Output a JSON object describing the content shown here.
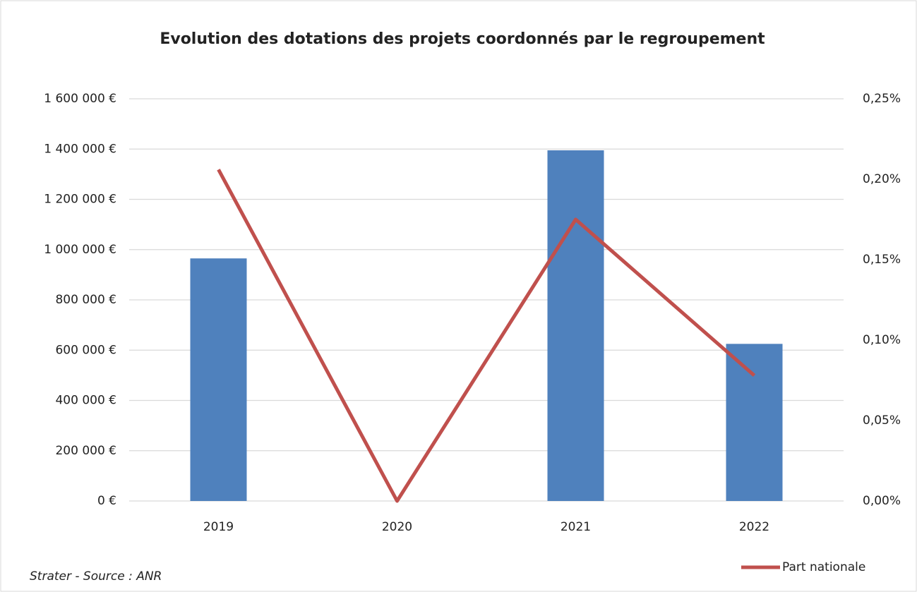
{
  "chart_data": {
    "type": "bar",
    "title": "Evolution des dotations des projets coordonnés par le regroupement",
    "footnote": "Strater - Source : ANR",
    "categories": [
      "2019",
      "2020",
      "2021",
      "2022"
    ],
    "series": [
      {
        "type": "bar",
        "color": "#4f81bd",
        "values": [
          965000,
          0,
          1395000,
          625000
        ]
      },
      {
        "type": "line",
        "name": "Part nationale",
        "axis": "y2",
        "color": "#c0504d",
        "values": [
          0.206,
          0,
          0.175,
          0.078
        ]
      }
    ],
    "ylim": [
      0,
      1600000
    ],
    "yticks": [
      {
        "value": 0,
        "label": "0 €"
      },
      {
        "value": 200000,
        "label": "200 000 €"
      },
      {
        "value": 400000,
        "label": "400 000 €"
      },
      {
        "value": 600000,
        "label": "600 000 €"
      },
      {
        "value": 800000,
        "label": "800 000 €"
      },
      {
        "value": 1000000,
        "label": "1 000 000 €"
      },
      {
        "value": 1200000,
        "label": "1 200 000 €"
      },
      {
        "value": 1400000,
        "label": "1 400 000 €"
      },
      {
        "value": 1600000,
        "label": "1 600 000 €"
      }
    ],
    "y2lim": [
      0,
      0.25
    ],
    "y2ticks": [
      {
        "value": 0,
        "label": "0,00%"
      },
      {
        "value": 0.05,
        "label": "0,05%"
      },
      {
        "value": 0.1,
        "label": "0,10%"
      },
      {
        "value": 0.15,
        "label": "0,15%"
      },
      {
        "value": 0.2,
        "label": "0,20%"
      },
      {
        "value": 0.25,
        "label": "0,25%"
      }
    ],
    "grid": true,
    "legend": "bottom-right"
  }
}
